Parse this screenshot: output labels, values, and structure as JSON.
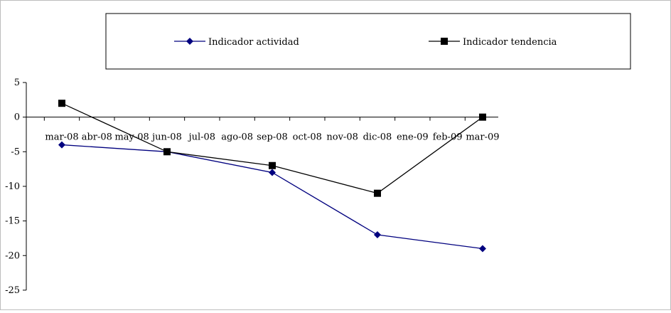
{
  "chart_data": {
    "type": "line",
    "categories": [
      "mar-08",
      "abr-08",
      "may-08",
      "jun-08",
      "jul-08",
      "ago-08",
      "sep-08",
      "oct-08",
      "nov-08",
      "dic-08",
      "ene-09",
      "feb-09",
      "mar-09"
    ],
    "series": [
      {
        "name": "Indicador actividad",
        "color": "#00007f",
        "marker": "diamond",
        "points": [
          {
            "x": "mar-08",
            "y": -4
          },
          {
            "x": "jun-08",
            "y": -5
          },
          {
            "x": "sep-08",
            "y": -8
          },
          {
            "x": "dic-08",
            "y": -17
          },
          {
            "x": "mar-09",
            "y": -19
          }
        ]
      },
      {
        "name": "Indicador tendencia",
        "color": "#000000",
        "marker": "square",
        "points": [
          {
            "x": "mar-08",
            "y": 2
          },
          {
            "x": "jun-08",
            "y": -5
          },
          {
            "x": "sep-08",
            "y": -7
          },
          {
            "x": "dic-08",
            "y": -11
          },
          {
            "x": "mar-09",
            "y": 0
          }
        ]
      }
    ],
    "ylim": [
      -25,
      5
    ],
    "yticks": [
      5,
      0,
      -5,
      -10,
      -15,
      -20,
      -25
    ],
    "title": "",
    "xlabel": "",
    "ylabel": "",
    "grid": false,
    "legend_position": "top"
  }
}
